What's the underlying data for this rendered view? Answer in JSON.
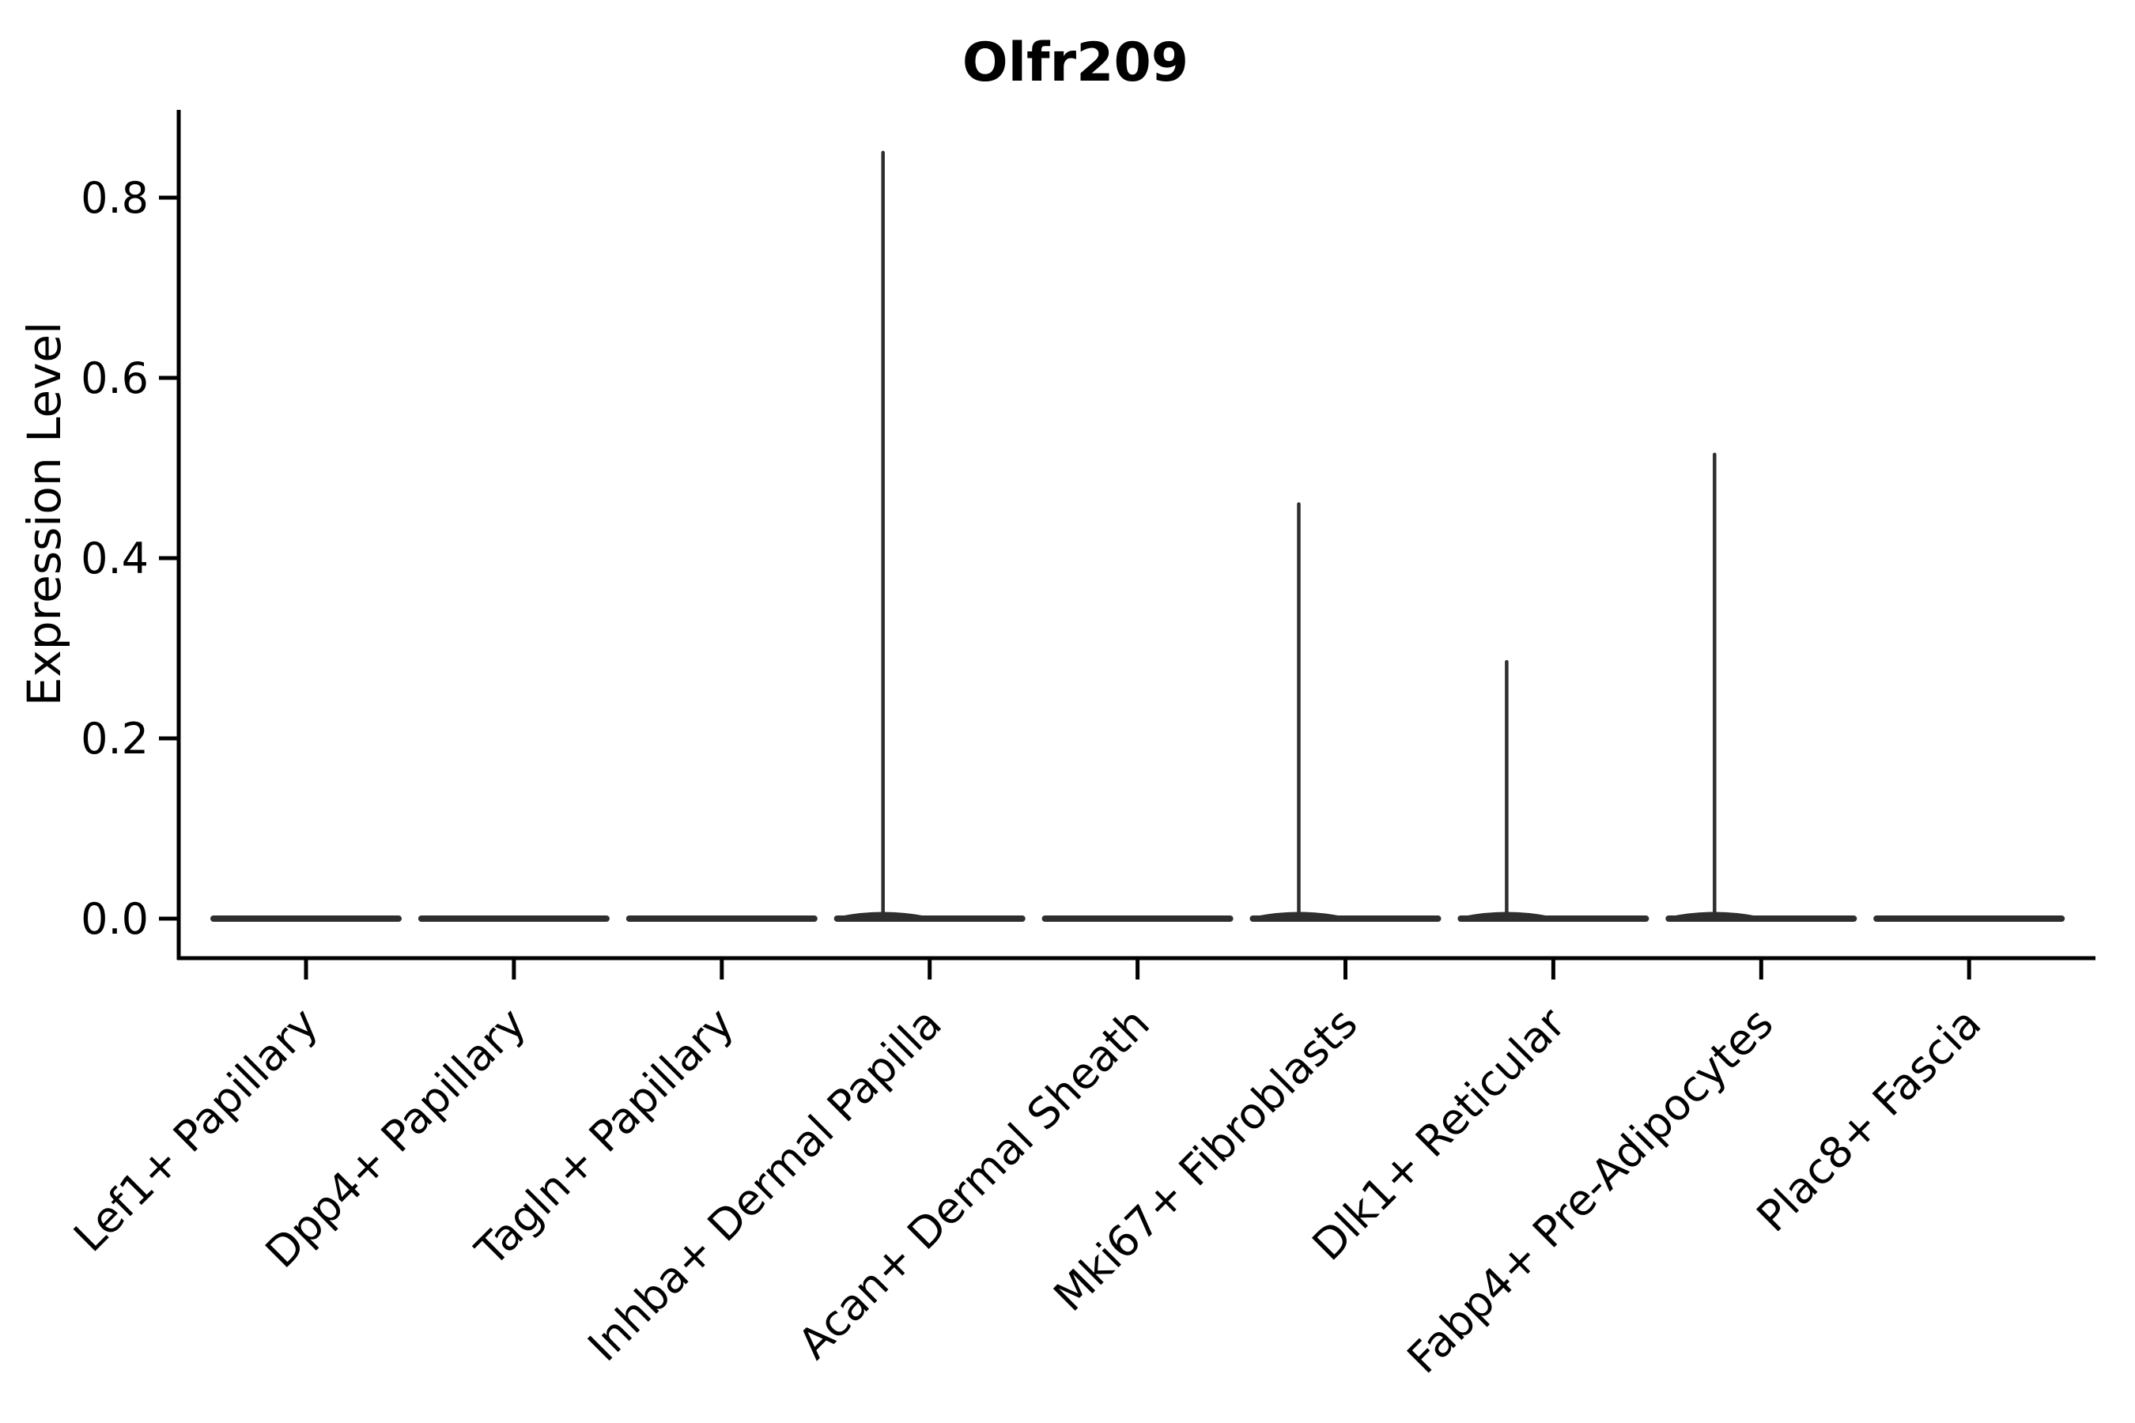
{
  "figure": {
    "title": "Olfr209"
  },
  "chart_data": {
    "type": "violin",
    "title": "Olfr209",
    "xlabel": "",
    "ylabel": "Expression Level",
    "categories": [
      "Lef1+ Papillary",
      "Dpp4+ Papillary",
      "Tagln+ Papillary",
      "Inhba+ Dermal Papilla",
      "Acan+ Dermal Sheath",
      "Mki67+ Fibroblasts",
      "Dlk1+ Reticular",
      "Fabp4+ Pre-Adipocytes",
      "Plac8+ Fascia"
    ],
    "series": [
      {
        "name": "distribution_mode",
        "description": "bulk of expression values per cluster",
        "values": [
          0.0,
          0.0,
          0.0,
          0.0,
          0.0,
          0.0,
          0.0,
          0.0,
          0.0
        ]
      },
      {
        "name": "max_expression_spike",
        "description": "top of thin violin tail per cluster",
        "values": [
          0.0,
          0.0,
          0.0,
          0.85,
          0.0,
          0.46,
          0.285,
          0.515,
          0.0
        ]
      }
    ],
    "yticks": [
      "0.0",
      "0.2",
      "0.4",
      "0.6",
      "0.8"
    ],
    "ytick_values": [
      0.0,
      0.2,
      0.4,
      0.6,
      0.8
    ],
    "ylim": [
      -0.044,
      0.9
    ],
    "grid": false,
    "legend_position": "none",
    "colors": {
      "violin": "#2e2e2e",
      "axis": "#000000",
      "background": "#ffffff"
    }
  }
}
